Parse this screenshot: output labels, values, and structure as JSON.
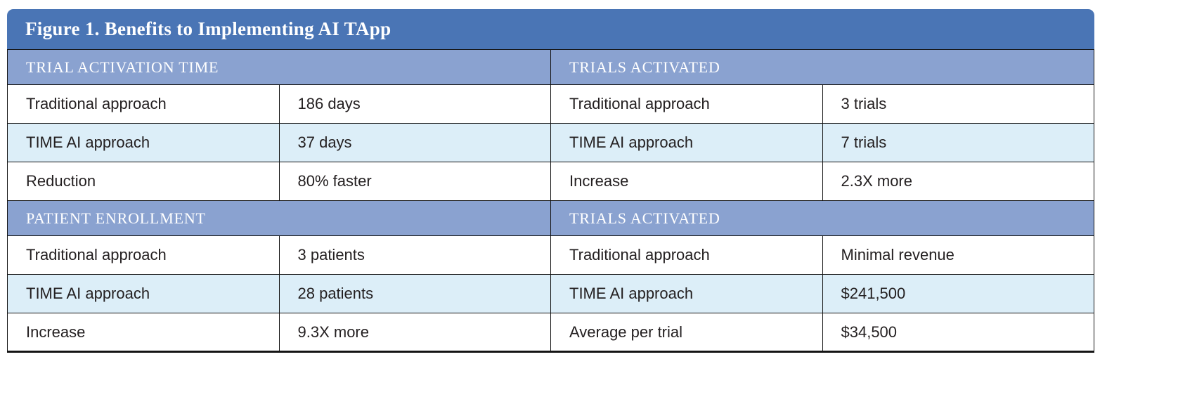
{
  "figure_title": "Figure 1. Benefits to Implementing AI TApp",
  "colors": {
    "title_bar": "#4a75b5",
    "section_header": "#8aa2d0",
    "row_alt": "#dceef8",
    "border": "#141414",
    "title_text": "#ffffff",
    "cell_text": "#231f20"
  },
  "chart_data": {
    "type": "table",
    "title": "Figure 1. Benefits to Implementing AI TApp",
    "layout": "two section bands, each with a left and right panel of label/value pairs",
    "sections": [
      {
        "panels": [
          {
            "header": "TRIAL ACTIVATION TIME",
            "rows": [
              {
                "label": "Traditional approach",
                "value": "186 days"
              },
              {
                "label": "TIME AI approach",
                "value": "37 days"
              },
              {
                "label": "Reduction",
                "value": "80% faster"
              }
            ]
          },
          {
            "header": "TRIALS ACTIVATED",
            "rows": [
              {
                "label": "Traditional approach",
                "value": "3 trials"
              },
              {
                "label": "TIME AI approach",
                "value": "7 trials"
              },
              {
                "label": "Increase",
                "value": "2.3X more"
              }
            ]
          }
        ]
      },
      {
        "panels": [
          {
            "header": "PATIENT ENROLLMENT",
            "rows": [
              {
                "label": "Traditional approach",
                "value": "3 patients"
              },
              {
                "label": "TIME AI approach",
                "value": "28 patients"
              },
              {
                "label": "Increase",
                "value": "9.3X more"
              }
            ]
          },
          {
            "header": "TRIALS ACTIVATED",
            "rows": [
              {
                "label": "Traditional approach",
                "value": "Minimal revenue"
              },
              {
                "label": "TIME AI approach",
                "value": "$241,500"
              },
              {
                "label": "Average per trial",
                "value": "$34,500"
              }
            ]
          }
        ]
      }
    ]
  }
}
